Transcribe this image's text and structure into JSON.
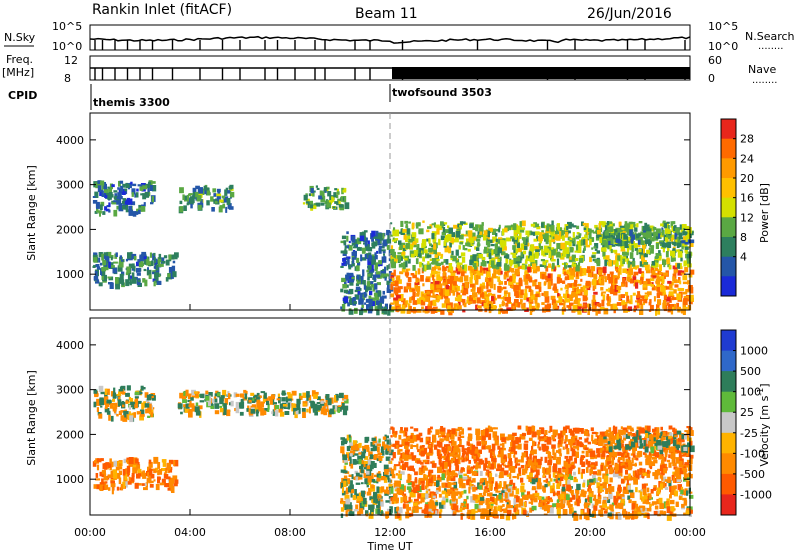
{
  "header": {
    "station": "Rankin Inlet (fitACF)",
    "beam": "Beam 11",
    "date": "26/Jun/2016"
  },
  "status_panel": {
    "left_labels": {
      "nsky": "N.Sky",
      "freq": "Freq.",
      "mhz": "[MHz]",
      "cpid": "CPID"
    },
    "right_labels": {
      "nsearch": "N.Search",
      "nave": "Nave"
    },
    "nsky_ticks": [
      "10^5",
      "10^0"
    ],
    "nsearch_ticks": [
      "10^5",
      "10^0"
    ],
    "freq_ticks": [
      "12",
      "8"
    ],
    "nave_ticks": [
      "60",
      "0"
    ],
    "cpid_segments": [
      {
        "name": "themis 3300",
        "start_hour": 0
      },
      {
        "name": "twofsound 3503",
        "start_hour": 12
      }
    ],
    "marker_dots": "........"
  },
  "time_axis": {
    "label": "Time UT",
    "ticks": [
      "00:00",
      "04:00",
      "08:00",
      "12:00",
      "16:00",
      "20:00",
      "00:00"
    ]
  },
  "chart_data": [
    {
      "type": "heatmap",
      "name": "Power",
      "ylabel": "Slant Range [km]",
      "xlabel": "Time UT",
      "x_ticks": [
        "00:00",
        "04:00",
        "08:00",
        "12:00",
        "16:00",
        "20:00",
        "00:00"
      ],
      "xlim_hours": [
        0,
        24
      ],
      "y_ticks": [
        1000,
        2000,
        3000,
        4000
      ],
      "ylim": [
        200,
        4600
      ],
      "colorbar": {
        "label": "Power [dB]",
        "ticks": [
          "28",
          "24",
          "20",
          "16",
          "12",
          "8",
          "4"
        ],
        "colors": [
          "#e8261c",
          "#ff6a00",
          "#ff9a00",
          "#ffc000",
          "#d4e000",
          "#5aa843",
          "#2d7f5e",
          "#2456a8",
          "#1a2ad8"
        ]
      },
      "features": [
        {
          "hours": [
            0.1,
            3.4
          ],
          "range_km": [
            800,
            1500
          ],
          "level_db": 8
        },
        {
          "hours": [
            0.1,
            2.5
          ],
          "range_km": [
            2400,
            3100
          ],
          "level_db": 8
        },
        {
          "hours": [
            3.5,
            5.6
          ],
          "range_km": [
            2500,
            3000
          ],
          "level_db": 10
        },
        {
          "hours": [
            8.5,
            10.2
          ],
          "range_km": [
            2500,
            3000
          ],
          "level_db": 12
        },
        {
          "hours": [
            10.0,
            12.0
          ],
          "range_km": [
            200,
            2000
          ],
          "level_db": 8
        },
        {
          "hours": [
            12.0,
            24.0
          ],
          "range_km": [
            200,
            1200
          ],
          "level_db": 24
        },
        {
          "hours": [
            12.0,
            24.0
          ],
          "range_km": [
            1200,
            2200
          ],
          "level_db": 14
        },
        {
          "hours": [
            20.5,
            24.0
          ],
          "range_km": [
            1700,
            2100
          ],
          "level_db": 10
        }
      ]
    },
    {
      "type": "heatmap",
      "name": "Velocity",
      "ylabel": "Slant Range [km]",
      "xlabel": "Time UT",
      "x_ticks": [
        "00:00",
        "04:00",
        "08:00",
        "12:00",
        "16:00",
        "20:00",
        "00:00"
      ],
      "xlim_hours": [
        0,
        24
      ],
      "y_ticks": [
        1000,
        2000,
        3000,
        4000
      ],
      "ylim": [
        200,
        4600
      ],
      "colorbar": {
        "label": "Velocity [m s^-1]",
        "ticks": [
          "1000",
          "500",
          "100",
          "25",
          "-25",
          "-100",
          "-500",
          "-1000"
        ],
        "colors": [
          "#1f3bd1",
          "#2f68c9",
          "#2e7d5a",
          "#5fba3a",
          "#c8c8c8",
          "#ffb300",
          "#ff8a00",
          "#ff5a00",
          "#e8261c"
        ]
      },
      "features": [
        {
          "hours": [
            0.1,
            3.4
          ],
          "range_km": [
            800,
            1500
          ],
          "velocity": -300
        },
        {
          "hours": [
            0.1,
            2.5
          ],
          "range_km": [
            2400,
            3100
          ],
          "velocity": 0
        },
        {
          "hours": [
            3.5,
            10.2
          ],
          "range_km": [
            2500,
            3000
          ],
          "velocity": 0
        },
        {
          "hours": [
            10.0,
            12.0
          ],
          "range_km": [
            200,
            2000
          ],
          "velocity": 0
        },
        {
          "hours": [
            12.0,
            24.0
          ],
          "range_km": [
            200,
            1200
          ],
          "velocity": -200
        },
        {
          "hours": [
            12.0,
            24.0
          ],
          "range_km": [
            1200,
            2200
          ],
          "velocity": -400
        },
        {
          "hours": [
            20.5,
            24.0
          ],
          "range_km": [
            1700,
            2100
          ],
          "velocity": 0
        }
      ]
    }
  ]
}
